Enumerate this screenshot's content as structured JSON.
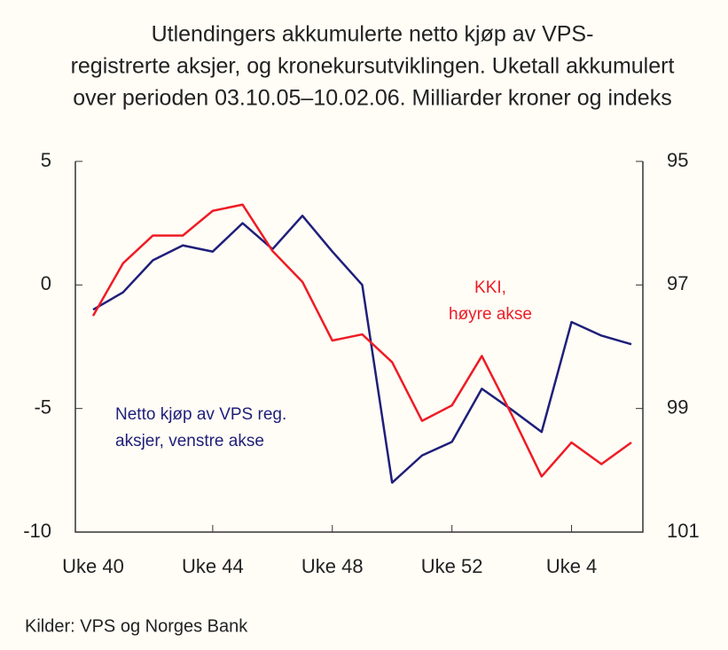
{
  "chart_data": {
    "type": "line",
    "title": [
      "Utlendingers akkumulerte netto kjøp av VPS-",
      "registrerte aksjer, og kronekursutviklingen. Uketall akkumulert",
      "over perioden 03.10.05–10.02.06. Milliarder kroner og indeks"
    ],
    "categories": [
      "Uke 40",
      null,
      null,
      null,
      "Uke 44",
      null,
      null,
      null,
      "Uke 48",
      null,
      null,
      null,
      "Uke 52",
      null,
      null,
      null,
      "Uke 4",
      null,
      null
    ],
    "series": [
      {
        "name": [
          "Netto kjøp av VPS reg.",
          "aksjer, venstre akse"
        ],
        "color": "#1f1f7a",
        "axis": "y",
        "values": [
          -1.0,
          -0.3,
          1.0,
          1.6,
          1.35,
          2.5,
          1.45,
          2.8,
          1.35,
          0,
          -8.0,
          -6.9,
          -6.35,
          -4.2,
          -5.05,
          -5.95,
          -1.5,
          -2.05,
          -2.4
        ]
      },
      {
        "name": [
          "KKI,",
          "høyre akse"
        ],
        "color": "#ee1c25",
        "axis": "y2",
        "values": [
          97.5,
          96.65,
          96.2,
          96.2,
          95.8,
          95.7,
          96.45,
          96.95,
          97.9,
          97.8,
          98.25,
          99.2,
          98.95,
          98.15,
          99.1,
          100.1,
          99.55,
          99.9,
          99.55
        ]
      }
    ],
    "ylim": [
      -10,
      5
    ],
    "yticks": [
      5,
      0,
      -5,
      -10
    ],
    "y2lim": [
      95,
      101
    ],
    "y2ticks": [
      95,
      97,
      99,
      101
    ],
    "y2_inverted": true,
    "source": "Kilder: VPS og Norges Bank"
  }
}
